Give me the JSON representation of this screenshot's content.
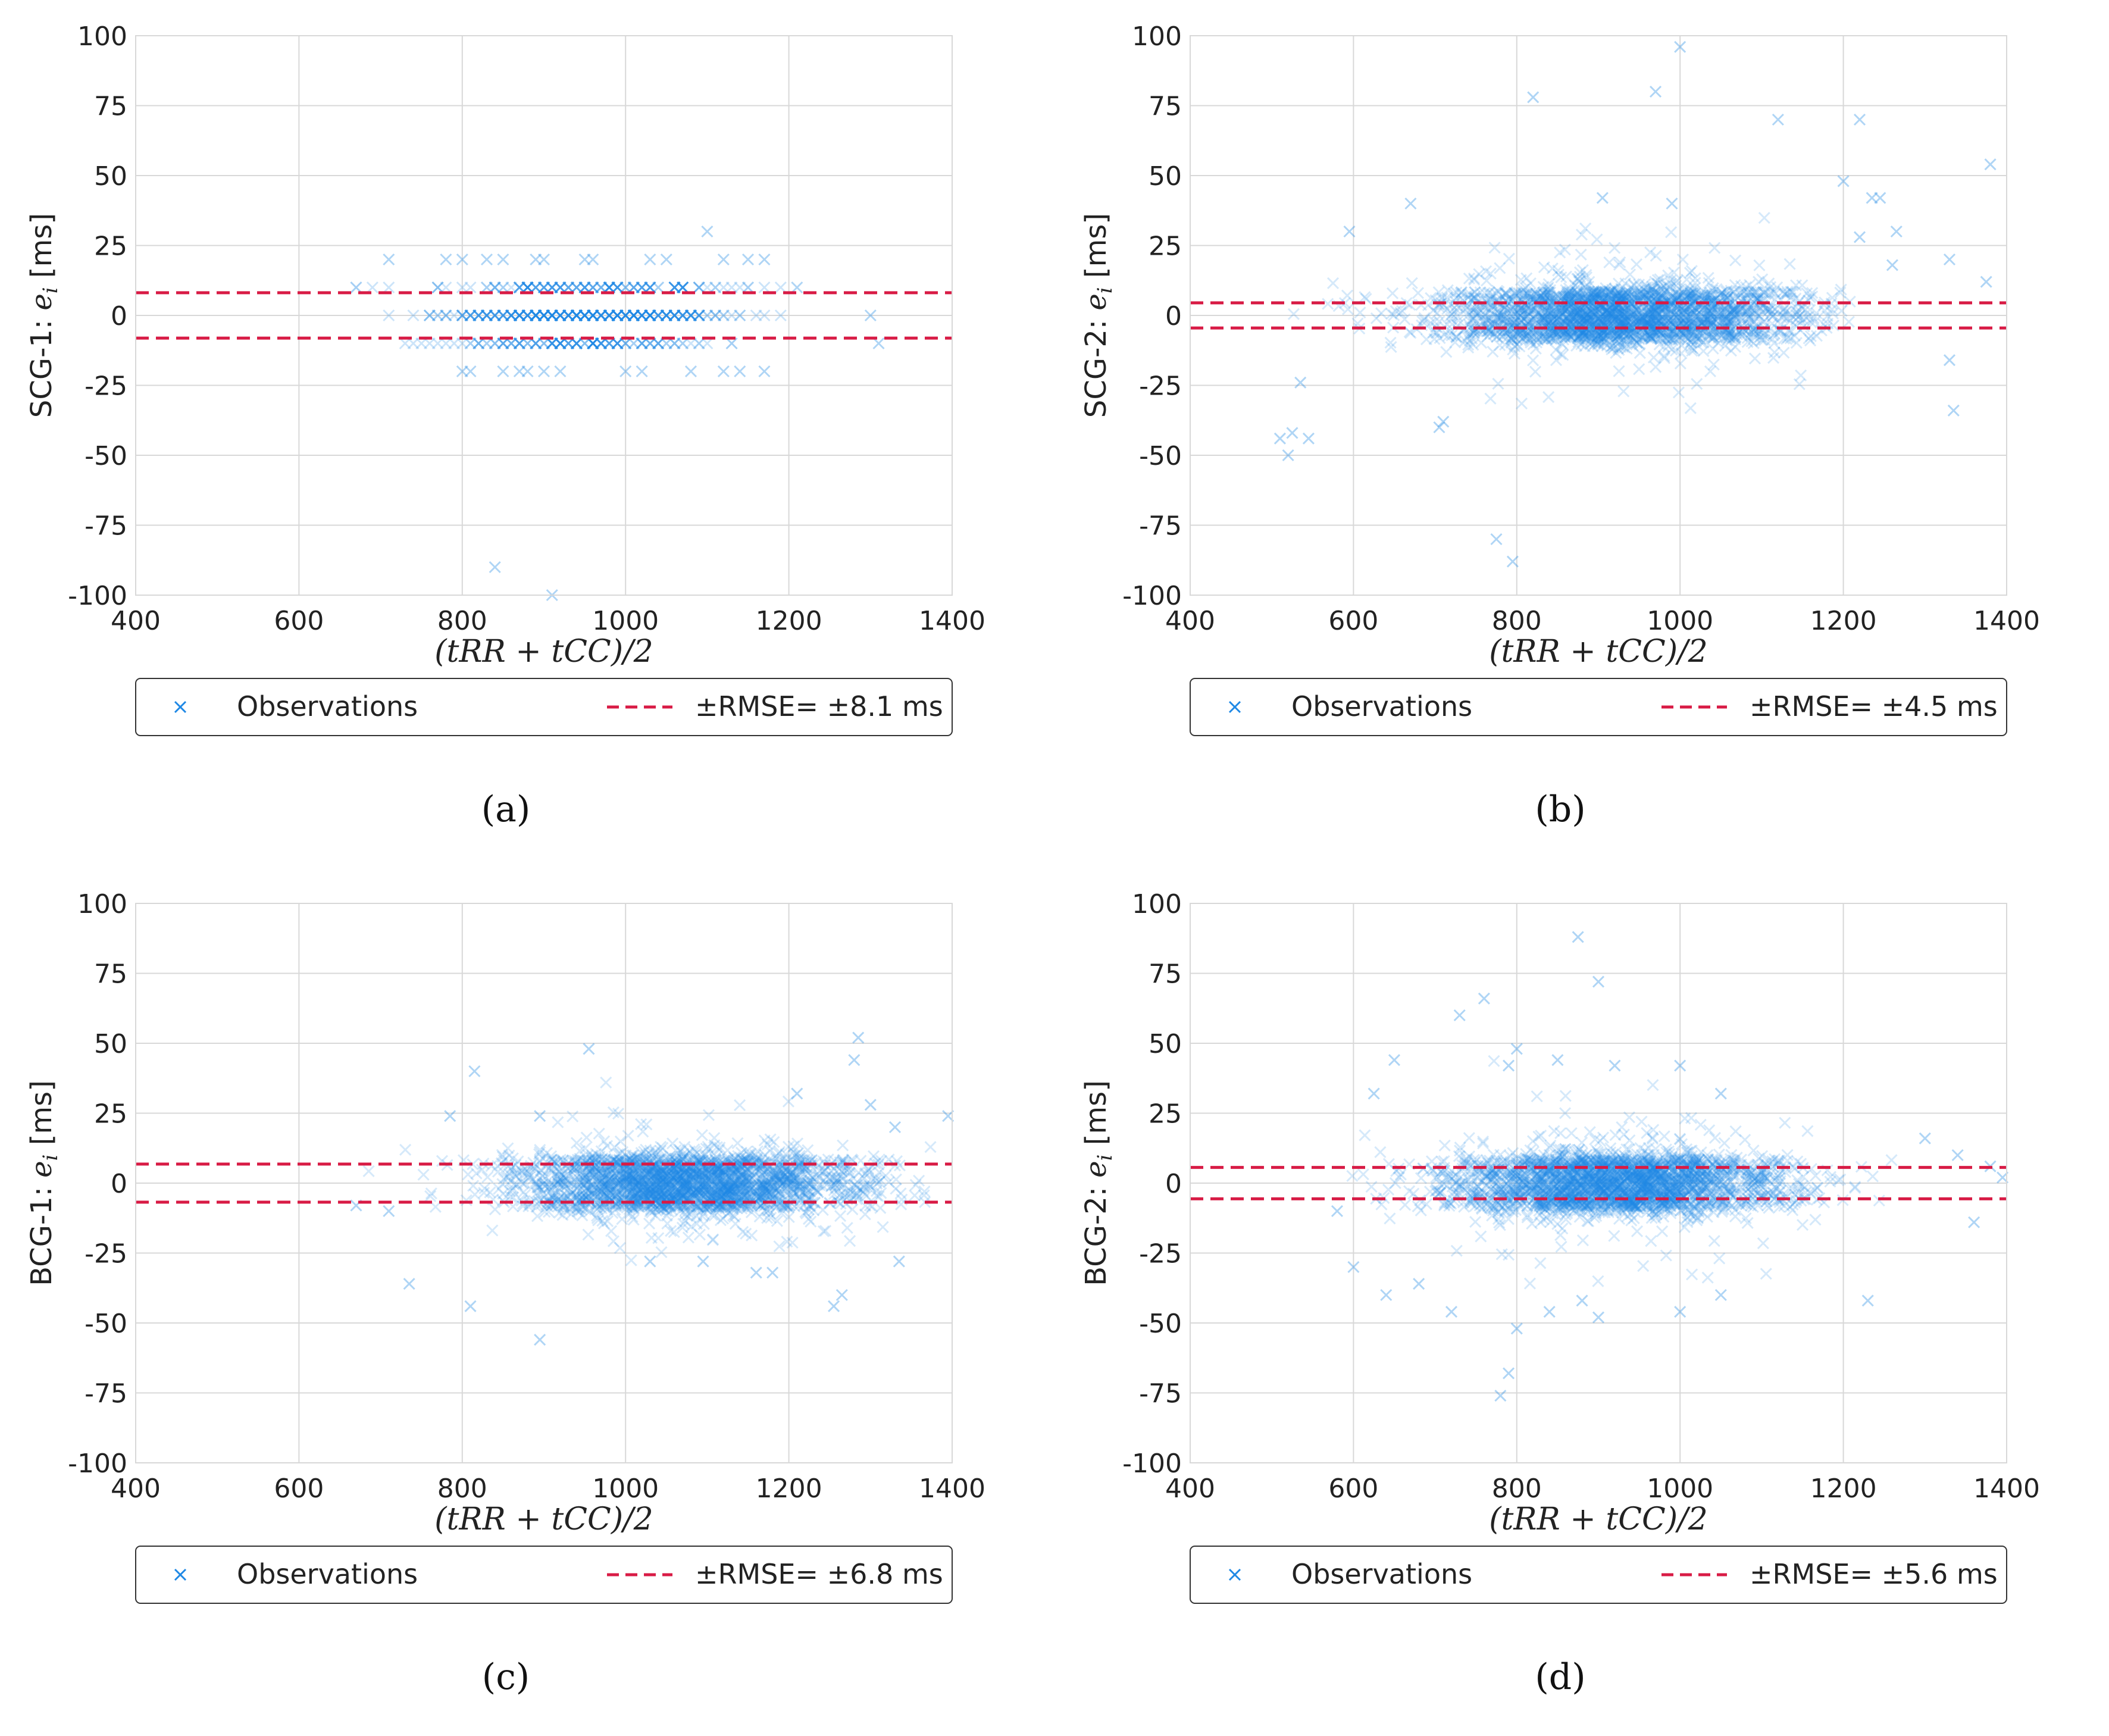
{
  "figure": {
    "captions": [
      "(a)",
      "(b)",
      "(c)",
      "(d)"
    ]
  },
  "colors": {
    "observations": "#1e88e5",
    "rmse_line": "#d81b45",
    "grid": "#d8d8d8",
    "axis_text": "#222222"
  },
  "chart_data": [
    {
      "id": "a",
      "type": "scatter",
      "caption": "(a)",
      "ylabel_prefix": "SCG-1: ",
      "ylabel_var": "e",
      "ylabel_sub": "i",
      "ylabel_unit": " [ms]",
      "xlabel": "(tRR + tCC)/2",
      "xlim": [
        400,
        1400
      ],
      "ylim": [
        -100,
        100
      ],
      "xticks": [
        "400",
        "600",
        "800",
        "1000",
        "1200",
        "1400"
      ],
      "yticks": [
        "100",
        "75",
        "50",
        "25",
        "0",
        "-25",
        "-50",
        "-75",
        "-100"
      ],
      "grid": true,
      "legend": {
        "observations": "Observations",
        "rmse": "±RMSE= ±8.1 ms"
      },
      "rmse": 8.1,
      "cloud": {
        "x_min": 670,
        "x_max": 1320,
        "center": 950,
        "spread": 160,
        "quantized": true,
        "step": 10,
        "core_sd": 4,
        "outlier_sd": 8
      },
      "outliers": [
        [
          710,
          20
        ],
        [
          780,
          20
        ],
        [
          800,
          20
        ],
        [
          830,
          20
        ],
        [
          850,
          20
        ],
        [
          890,
          20
        ],
        [
          900,
          20
        ],
        [
          950,
          20
        ],
        [
          960,
          20
        ],
        [
          1030,
          20
        ],
        [
          1050,
          20
        ],
        [
          1100,
          30
        ],
        [
          1120,
          20
        ],
        [
          1150,
          20
        ],
        [
          1170,
          20
        ],
        [
          1210,
          10
        ],
        [
          1300,
          0
        ],
        [
          1310,
          -10
        ],
        [
          800,
          -20
        ],
        [
          810,
          -20
        ],
        [
          850,
          -20
        ],
        [
          870,
          -20
        ],
        [
          880,
          -20
        ],
        [
          900,
          -20
        ],
        [
          920,
          -20
        ],
        [
          1000,
          -20
        ],
        [
          1020,
          -20
        ],
        [
          1080,
          -20
        ],
        [
          1120,
          -20
        ],
        [
          1140,
          -20
        ],
        [
          1170,
          -20
        ],
        [
          840,
          -90
        ],
        [
          910,
          -100
        ]
      ]
    },
    {
      "id": "b",
      "type": "scatter",
      "caption": "(b)",
      "ylabel_prefix": "SCG-2: ",
      "ylabel_var": "e",
      "ylabel_sub": "i",
      "ylabel_unit": " [ms]",
      "xlabel": "(tRR + tCC)/2",
      "xlim": [
        400,
        1400
      ],
      "ylim": [
        -100,
        100
      ],
      "xticks": [
        "400",
        "600",
        "800",
        "1000",
        "1200",
        "1400"
      ],
      "yticks": [
        "100",
        "75",
        "50",
        "25",
        "0",
        "-25",
        "-50",
        "-75",
        "-100"
      ],
      "grid": true,
      "legend": {
        "observations": "Observations",
        "rmse": "±RMSE= ±4.5 ms"
      },
      "rmse": 4.5,
      "cloud": {
        "x_min": 515,
        "x_max": 1210,
        "center": 930,
        "spread": 200,
        "quantized": false,
        "step": 0,
        "core_sd": 5,
        "outlier_sd": 12
      },
      "outliers": [
        [
          1000,
          96
        ],
        [
          820,
          78
        ],
        [
          970,
          80
        ],
        [
          1120,
          70
        ],
        [
          1220,
          70
        ],
        [
          1380,
          54
        ],
        [
          1200,
          48
        ],
        [
          1235,
          42
        ],
        [
          1245,
          42
        ],
        [
          1330,
          20
        ],
        [
          1260,
          18
        ],
        [
          1375,
          12
        ],
        [
          1330,
          -16
        ],
        [
          1335,
          -34
        ],
        [
          510,
          -44
        ],
        [
          525,
          -42
        ],
        [
          520,
          -50
        ],
        [
          545,
          -44
        ],
        [
          775,
          -80
        ],
        [
          795,
          -88
        ],
        [
          705,
          -40
        ],
        [
          710,
          -38
        ],
        [
          990,
          40
        ],
        [
          905,
          42
        ],
        [
          670,
          40
        ],
        [
          595,
          30
        ],
        [
          1220,
          28
        ],
        [
          1265,
          30
        ],
        [
          535,
          -24
        ]
      ]
    },
    {
      "id": "c",
      "type": "scatter",
      "caption": "(c)",
      "ylabel_prefix": "BCG-1: ",
      "ylabel_var": "e",
      "ylabel_sub": "i",
      "ylabel_unit": " [ms]",
      "xlabel": "(tRR + tCC)/2",
      "xlim": [
        400,
        1400
      ],
      "ylim": [
        -100,
        100
      ],
      "xticks": [
        "400",
        "600",
        "800",
        "1000",
        "1200",
        "1400"
      ],
      "yticks": [
        "100",
        "75",
        "50",
        "25",
        "0",
        "-25",
        "-50",
        "-75",
        "-100"
      ],
      "grid": true,
      "legend": {
        "observations": "Observations",
        "rmse": "±RMSE= ±6.8 ms"
      },
      "rmse": 6.8,
      "cloud": {
        "x_min": 670,
        "x_max": 1400,
        "center": 1080,
        "spread": 190,
        "quantized": false,
        "step": 0,
        "core_sd": 5,
        "outlier_sd": 11
      },
      "outliers": [
        [
          955,
          48
        ],
        [
          1285,
          52
        ],
        [
          1280,
          44
        ],
        [
          815,
          40
        ],
        [
          785,
          24
        ],
        [
          895,
          24
        ],
        [
          1210,
          32
        ],
        [
          1300,
          28
        ],
        [
          1330,
          20
        ],
        [
          1395,
          24
        ],
        [
          735,
          -36
        ],
        [
          810,
          -44
        ],
        [
          895,
          -56
        ],
        [
          1255,
          -44
        ],
        [
          1265,
          -40
        ],
        [
          1335,
          -28
        ],
        [
          1180,
          -32
        ],
        [
          1160,
          -32
        ],
        [
          1030,
          -28
        ],
        [
          1095,
          -28
        ],
        [
          710,
          -10
        ],
        [
          670,
          -8
        ]
      ]
    },
    {
      "id": "d",
      "type": "scatter",
      "caption": "(d)",
      "ylabel_prefix": "BCG-2: ",
      "ylabel_var": "e",
      "ylabel_sub": "i",
      "ylabel_unit": " [ms]",
      "xlabel": "(tRR + tCC)/2",
      "xlim": [
        400,
        1400
      ],
      "ylim": [
        -100,
        100
      ],
      "xticks": [
        "400",
        "600",
        "800",
        "1000",
        "1200",
        "1400"
      ],
      "yticks": [
        "100",
        "75",
        "50",
        "25",
        "0",
        "-25",
        "-50",
        "-75",
        "-100"
      ],
      "grid": true,
      "legend": {
        "observations": "Observations",
        "rmse": "±RMSE= ±5.6 ms"
      },
      "rmse": 5.6,
      "cloud": {
        "x_min": 590,
        "x_max": 1260,
        "center": 920,
        "spread": 190,
        "quantized": false,
        "step": 0,
        "core_sd": 5,
        "outlier_sd": 14
      },
      "outliers": [
        [
          875,
          88
        ],
        [
          900,
          72
        ],
        [
          760,
          66
        ],
        [
          730,
          60
        ],
        [
          800,
          48
        ],
        [
          790,
          42
        ],
        [
          650,
          44
        ],
        [
          625,
          32
        ],
        [
          1000,
          42
        ],
        [
          920,
          42
        ],
        [
          850,
          44
        ],
        [
          1050,
          32
        ],
        [
          1300,
          16
        ],
        [
          1340,
          10
        ],
        [
          1380,
          6
        ],
        [
          1395,
          2
        ],
        [
          1360,
          -14
        ],
        [
          1230,
          -42
        ],
        [
          790,
          -68
        ],
        [
          780,
          -76
        ],
        [
          800,
          -52
        ],
        [
          840,
          -46
        ],
        [
          880,
          -42
        ],
        [
          900,
          -48
        ],
        [
          1000,
          -46
        ],
        [
          1050,
          -40
        ],
        [
          720,
          -46
        ],
        [
          680,
          -36
        ],
        [
          640,
          -40
        ],
        [
          580,
          -10
        ],
        [
          600,
          -30
        ]
      ]
    }
  ]
}
